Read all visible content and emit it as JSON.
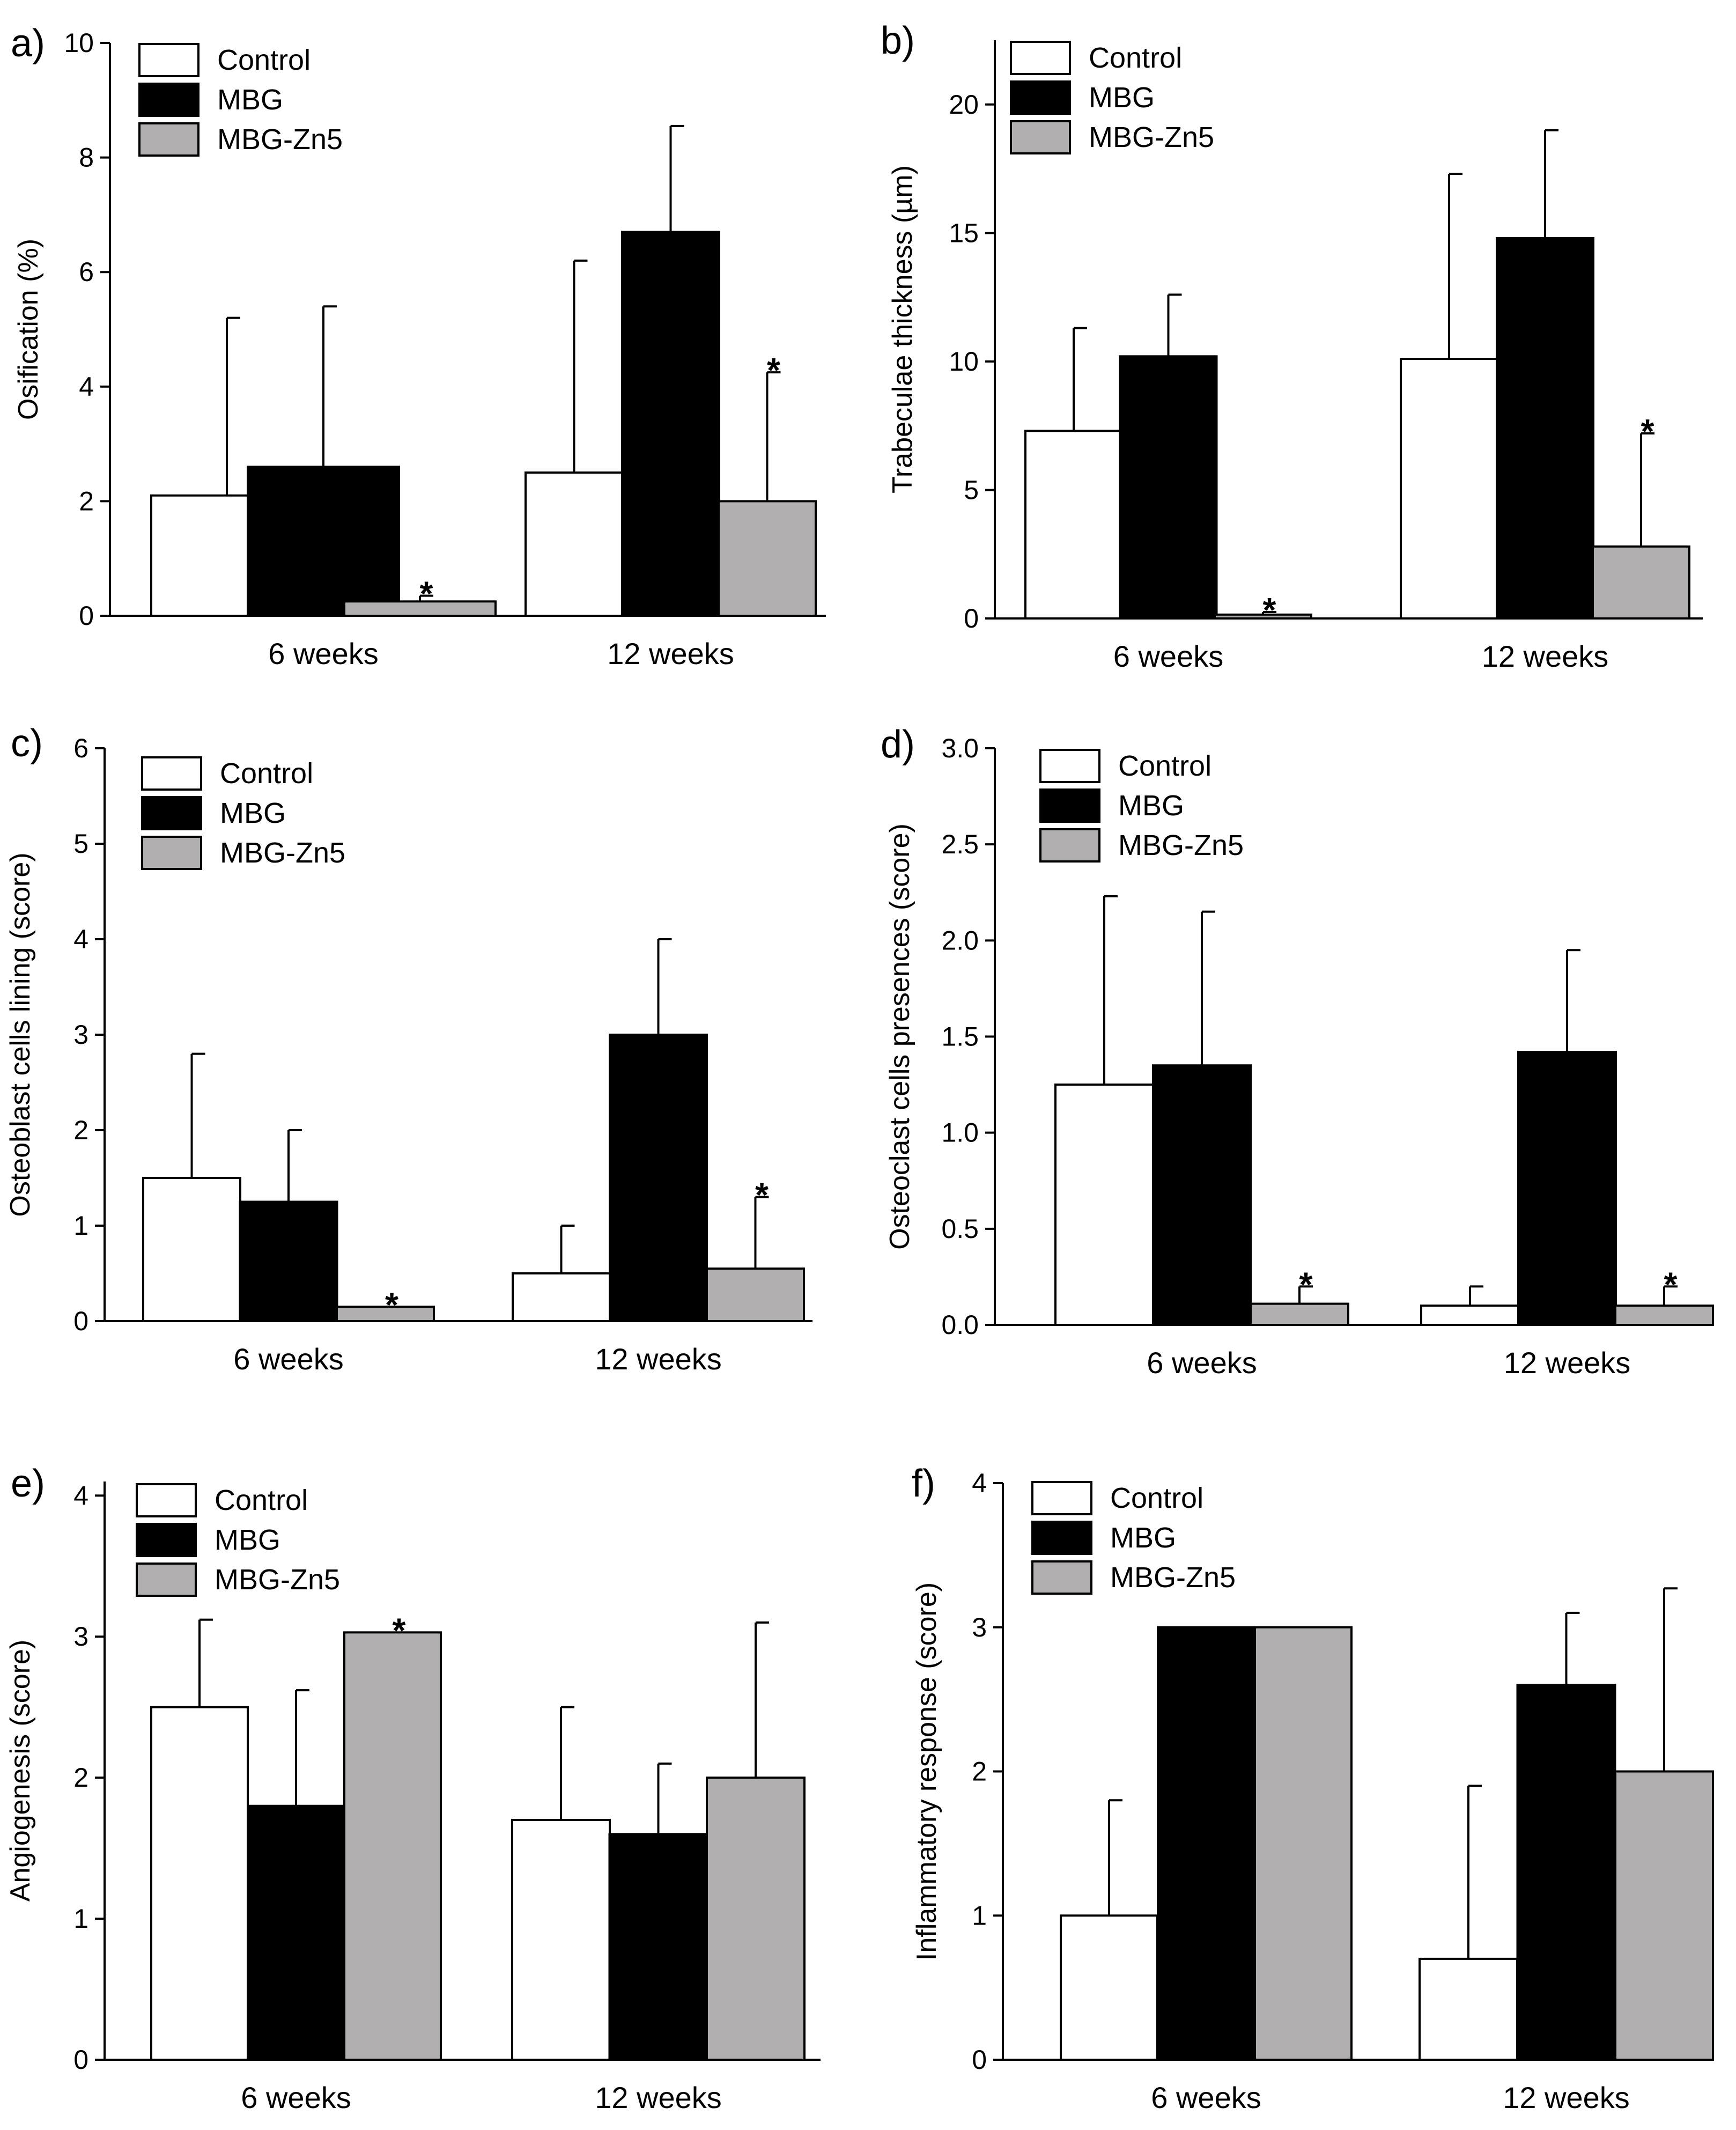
{
  "legend_labels": [
    "Control",
    "MBG",
    "MBG-Zn5"
  ],
  "series_colors": [
    "#ffffff",
    "#000000",
    "#b0aeae"
  ],
  "significance_marker": "*",
  "chart_data": [
    {
      "type": "bar",
      "panel": "a)",
      "ylabel": "Osification (%)",
      "categories": [
        "6 weeks",
        "12 weeks"
      ],
      "ylim": [
        0,
        10
      ],
      "yticks": [
        0,
        2,
        4,
        6,
        8,
        10
      ],
      "legend_position": "top-left",
      "series": [
        {
          "name": "Control",
          "values": [
            2.1,
            2.5
          ],
          "errors": [
            3.1,
            3.7
          ]
        },
        {
          "name": "MBG",
          "values": [
            2.6,
            6.7
          ],
          "errors": [
            2.8,
            1.85
          ]
        },
        {
          "name": "MBG-Zn5",
          "values": [
            0.25,
            2.0
          ],
          "errors": [
            0.1,
            2.25
          ]
        }
      ],
      "significant": [
        [
          false,
          false
        ],
        [
          false,
          false
        ],
        [
          true,
          true
        ]
      ]
    },
    {
      "type": "bar",
      "panel": "b)",
      "ylabel": "Trabeculae thickness (µm)",
      "categories": [
        "6 weeks",
        "12 weeks"
      ],
      "ylim": [
        0,
        22.5
      ],
      "yticks": [
        0,
        5,
        10,
        15,
        20
      ],
      "legend_position": "top-left",
      "series": [
        {
          "name": "Control",
          "values": [
            7.3,
            10.1
          ],
          "errors": [
            4.0,
            7.2
          ]
        },
        {
          "name": "MBG",
          "values": [
            10.2,
            14.8
          ],
          "errors": [
            2.4,
            4.2
          ]
        },
        {
          "name": "MBG-Zn5",
          "values": [
            0.15,
            2.8
          ],
          "errors": [
            0.1,
            4.4
          ]
        }
      ],
      "significant": [
        [
          false,
          false
        ],
        [
          false,
          false
        ],
        [
          true,
          true
        ]
      ]
    },
    {
      "type": "bar",
      "panel": "c)",
      "ylabel": "Osteoblast cells lining (score)",
      "categories": [
        "6 weeks",
        "12 weeks"
      ],
      "ylim": [
        0,
        6
      ],
      "yticks": [
        0,
        1,
        2,
        3,
        4,
        5,
        6
      ],
      "legend_position": "top-left",
      "series": [
        {
          "name": "Control",
          "values": [
            1.5,
            0.5
          ],
          "errors": [
            1.3,
            0.5
          ]
        },
        {
          "name": "MBG",
          "values": [
            1.25,
            3.0
          ],
          "errors": [
            0.75,
            1.0
          ]
        },
        {
          "name": "MBG-Zn5",
          "values": [
            0.15,
            0.55
          ],
          "errors": [
            0,
            0.75
          ]
        }
      ],
      "significant": [
        [
          false,
          false
        ],
        [
          false,
          false
        ],
        [
          true,
          true
        ]
      ]
    },
    {
      "type": "bar",
      "panel": "d)",
      "ylabel": "Osteoclast cells presences (score)",
      "categories": [
        "6 weeks",
        "12 weeks"
      ],
      "ylim": [
        0,
        3
      ],
      "yticks": [
        "0.0",
        "0.5",
        "1.0",
        "1.5",
        "2.0",
        "2.5",
        "3.0"
      ],
      "legend_position": "top-left",
      "series": [
        {
          "name": "Control",
          "values": [
            1.25,
            0.1
          ],
          "errors": [
            0.98,
            0.1
          ]
        },
        {
          "name": "MBG",
          "values": [
            1.35,
            1.42
          ],
          "errors": [
            0.8,
            0.53
          ]
        },
        {
          "name": "MBG-Zn5",
          "values": [
            0.11,
            0.1
          ],
          "errors": [
            0.09,
            0.1
          ]
        }
      ],
      "significant": [
        [
          false,
          false
        ],
        [
          false,
          false
        ],
        [
          true,
          true
        ]
      ]
    },
    {
      "type": "bar",
      "panel": "e)",
      "ylabel": "Angiogenesis (score)",
      "categories": [
        "6 weeks",
        "12 weeks"
      ],
      "ylim": [
        0,
        4.1
      ],
      "yticks": [
        0,
        1,
        2,
        3,
        4
      ],
      "legend_position": "top-left",
      "series": [
        {
          "name": "Control",
          "values": [
            2.5,
            1.7
          ],
          "errors": [
            0.62,
            0.8
          ]
        },
        {
          "name": "MBG",
          "values": [
            1.8,
            1.6
          ],
          "errors": [
            0.82,
            0.5
          ]
        },
        {
          "name": "MBG-Zn5",
          "values": [
            3.03,
            2.0
          ],
          "errors": [
            0,
            1.1
          ]
        }
      ],
      "significant": [
        [
          false,
          false
        ],
        [
          false,
          false
        ],
        [
          true,
          false
        ]
      ]
    },
    {
      "type": "bar",
      "panel": "f)",
      "ylabel": "Inflammatory response (score)",
      "categories": [
        "6 weeks",
        "12 weeks"
      ],
      "ylim": [
        0,
        4
      ],
      "yticks": [
        0,
        1,
        2,
        3,
        4
      ],
      "legend_position": "top-left",
      "series": [
        {
          "name": "Control",
          "values": [
            1.0,
            0.7
          ],
          "errors": [
            0.8,
            1.2
          ]
        },
        {
          "name": "MBG",
          "values": [
            3.0,
            2.6
          ],
          "errors": [
            0,
            0.5
          ]
        },
        {
          "name": "MBG-Zn5",
          "values": [
            3.0,
            2.0
          ],
          "errors": [
            0,
            1.27
          ]
        }
      ],
      "significant": [
        [
          false,
          false
        ],
        [
          false,
          false
        ],
        [
          false,
          false
        ]
      ]
    }
  ]
}
